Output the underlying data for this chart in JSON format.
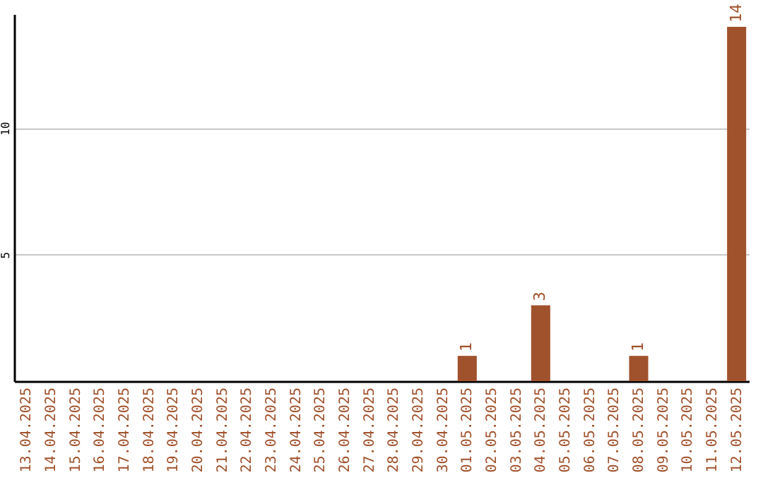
{
  "chart_data": {
    "type": "bar",
    "categories": [
      "13.04.2025",
      "14.04.2025",
      "15.04.2025",
      "16.04.2025",
      "17.04.2025",
      "18.04.2025",
      "19.04.2025",
      "20.04.2025",
      "21.04.2025",
      "22.04.2025",
      "23.04.2025",
      "24.04.2025",
      "25.04.2025",
      "26.04.2025",
      "27.04.2025",
      "28.04.2025",
      "29.04.2025",
      "30.04.2025",
      "01.05.2025",
      "02.05.2025",
      "03.05.2025",
      "04.05.2025",
      "05.05.2025",
      "06.05.2025",
      "07.05.2025",
      "08.05.2025",
      "09.05.2025",
      "10.05.2025",
      "11.05.2025",
      "12.05.2025"
    ],
    "values": [
      0,
      0,
      0,
      0,
      0,
      0,
      0,
      0,
      0,
      0,
      0,
      0,
      0,
      0,
      0,
      0,
      0,
      0,
      1,
      0,
      0,
      3,
      0,
      0,
      0,
      1,
      0,
      0,
      0,
      14
    ],
    "value_labels": [
      null,
      null,
      null,
      null,
      null,
      null,
      null,
      null,
      null,
      null,
      null,
      null,
      null,
      null,
      null,
      null,
      null,
      null,
      "1",
      null,
      null,
      "3",
      null,
      null,
      null,
      "1",
      null,
      null,
      null,
      "14"
    ],
    "color": "#a0522d",
    "ylim": [
      0,
      14.5
    ],
    "yticks": [
      5,
      10
    ],
    "grid": "y"
  }
}
